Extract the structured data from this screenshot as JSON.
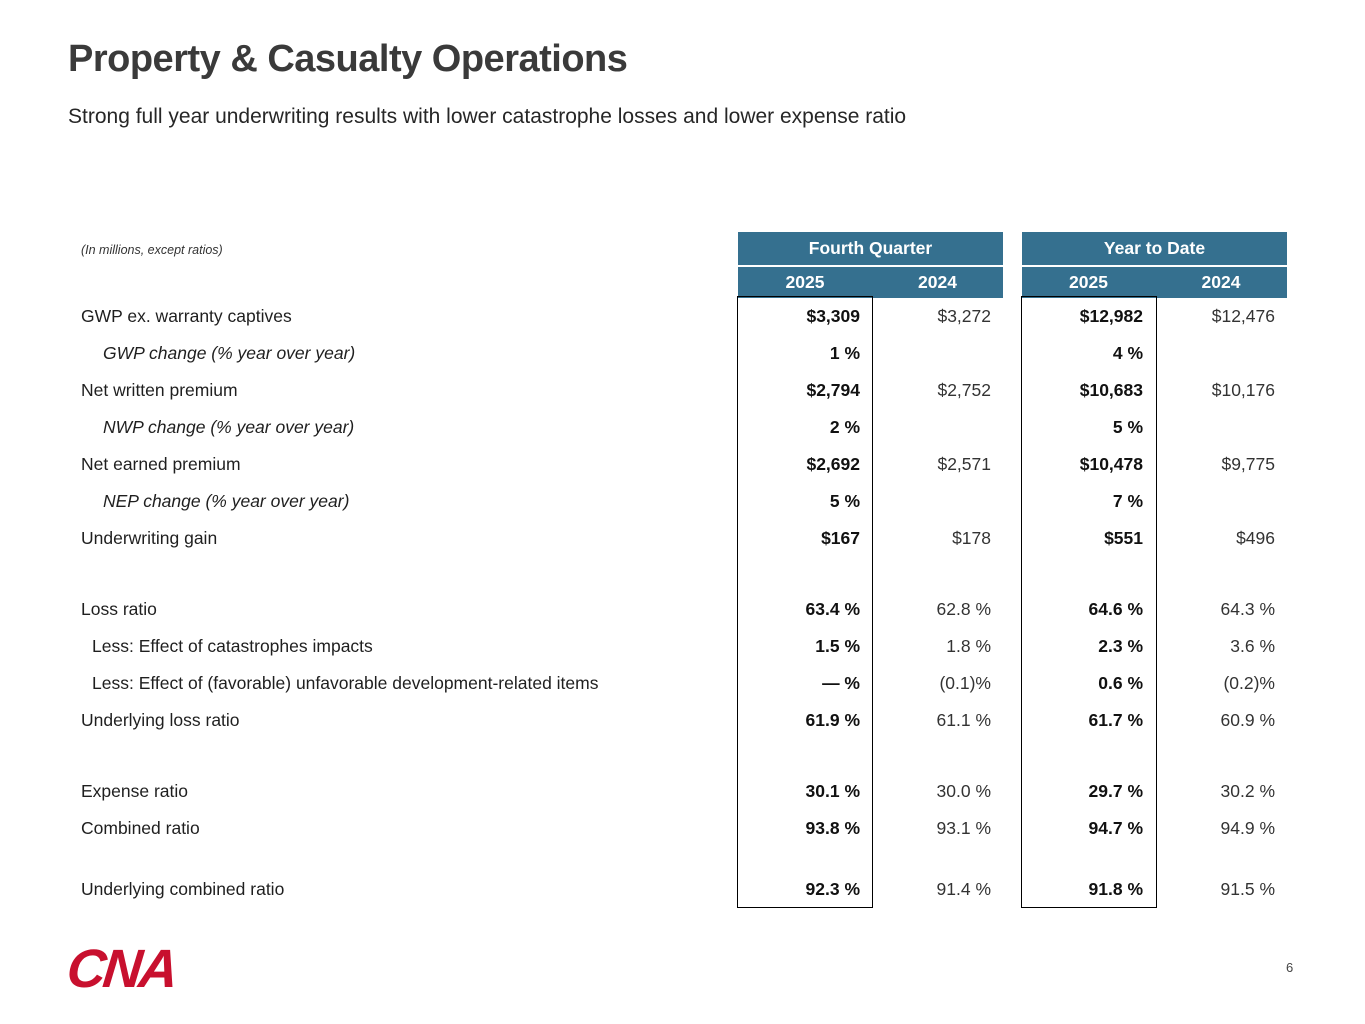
{
  "slide": {
    "title": "Property & Casualty Operations",
    "subtitle": "Strong full year underwriting results with lower catastrophe losses and lower expense ratio",
    "logo_text": "CNA",
    "page_number": "6"
  },
  "table": {
    "note": "(In millions, except ratios)",
    "groups": [
      {
        "label": "Fourth Quarter",
        "years": [
          "2025",
          "2024"
        ]
      },
      {
        "label": "Year to Date",
        "years": [
          "2025",
          "2024"
        ]
      }
    ],
    "rows": [
      {
        "label": "GWP ex. warranty captives",
        "style": "normal",
        "values": [
          "$3,309",
          "$3,272",
          "$12,982",
          "$12,476"
        ]
      },
      {
        "label": "GWP change (% year over year)",
        "style": "italic-indent",
        "values": [
          "1 %",
          "",
          "4 %",
          ""
        ]
      },
      {
        "label": "Net written premium",
        "style": "normal",
        "values": [
          "$2,794",
          "$2,752",
          "$10,683",
          "$10,176"
        ]
      },
      {
        "label": "NWP change (% year over year)",
        "style": "italic-indent",
        "values": [
          "2 %",
          "",
          "5 %",
          ""
        ]
      },
      {
        "label": "Net earned premium",
        "style": "normal",
        "values": [
          "$2,692",
          "$2,571",
          "$10,478",
          "$9,775"
        ]
      },
      {
        "label": "NEP change (% year over year)",
        "style": "italic-indent",
        "values": [
          "5 %",
          "",
          "7 %",
          ""
        ]
      },
      {
        "label": "Underwriting gain",
        "style": "normal",
        "values": [
          "$167",
          "$178",
          "$551",
          "$496"
        ]
      },
      {
        "style": "spacer"
      },
      {
        "label": "Loss ratio",
        "style": "normal",
        "values": [
          "63.4 %",
          "62.8 %",
          "64.6 %",
          "64.3 %"
        ]
      },
      {
        "label": "Less: Effect of catastrophes impacts",
        "style": "indent",
        "values": [
          "1.5 %",
          "1.8 %",
          "2.3 %",
          "3.6 %"
        ]
      },
      {
        "label": "Less: Effect of (favorable) unfavorable development-related items",
        "style": "indent",
        "values": [
          "— %",
          "(0.1)%",
          "0.6 %",
          "(0.2)%"
        ]
      },
      {
        "label": "Underlying loss ratio",
        "style": "normal",
        "values": [
          "61.9 %",
          "61.1 %",
          "61.7 %",
          "60.9 %"
        ]
      },
      {
        "style": "spacer"
      },
      {
        "label": "Expense ratio",
        "style": "normal",
        "values": [
          "30.1 %",
          "30.0 %",
          "29.7 %",
          "30.2 %"
        ]
      },
      {
        "label": "Combined ratio",
        "style": "normal",
        "values": [
          "93.8 %",
          "93.1 %",
          "94.7 %",
          "94.9 %"
        ]
      },
      {
        "style": "spacer-sm"
      },
      {
        "label": "Underlying combined ratio",
        "style": "normal",
        "values": [
          "92.3 %",
          "91.4 %",
          "91.8 %",
          "91.5 %"
        ]
      }
    ]
  },
  "colors": {
    "header_bg": "#35708F",
    "logo_red": "#C8102E",
    "highlight_border": "#000000"
  }
}
